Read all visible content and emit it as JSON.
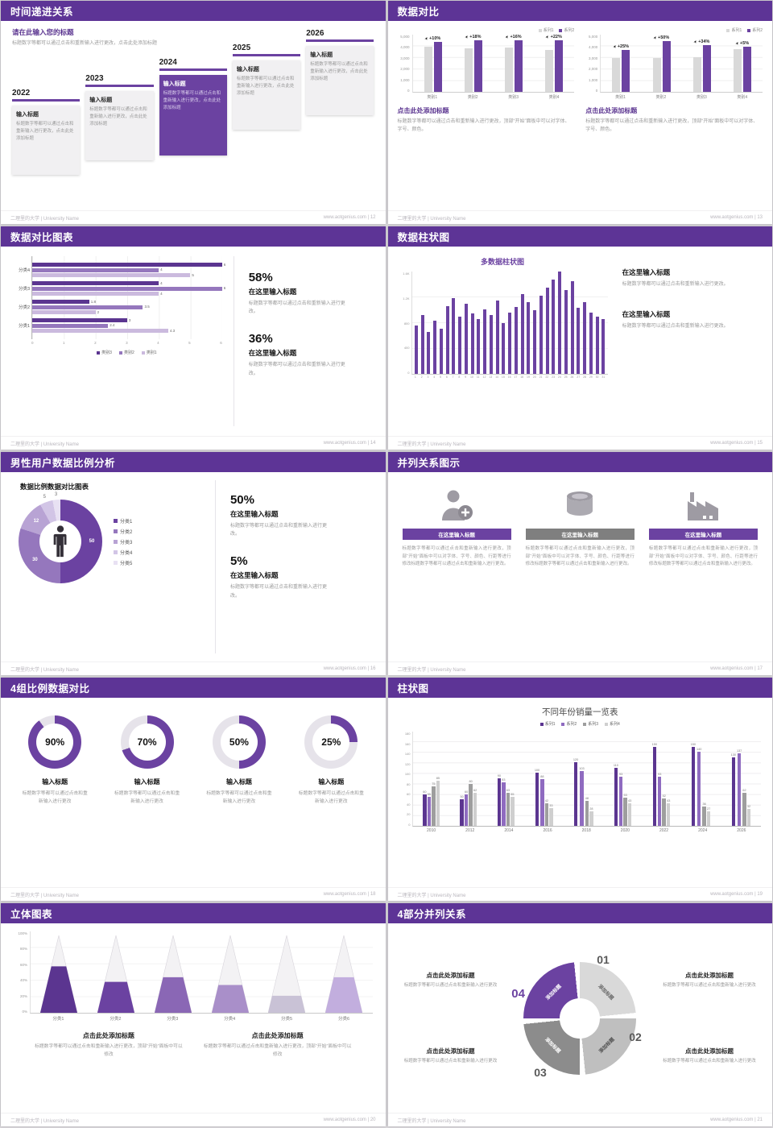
{
  "meta": {
    "brand": "二理里的大学 | University Name",
    "site": "www.aotgenius.com"
  },
  "colors": {
    "accent": "#6b42a1",
    "header": "#5d3496",
    "ring_rest": "#e6e3ea"
  },
  "s12": {
    "header": "时间递进关系",
    "footer_right": "www.aotgenius.com | 12",
    "intro_title": "请在此输入您的标题",
    "intro_body": "标题数字等都可以通过点击和重新输入进行更改，点击此处添加标题",
    "items": [
      {
        "year": "2022",
        "title": "输入标题",
        "body": "标题数字等都可以通过点击和重新输入进行更改，点击此处添加标题"
      },
      {
        "year": "2023",
        "title": "输入标题",
        "body": "标题数字等都可以通过点击和重新输入进行更改，点击此处添加标题"
      },
      {
        "year": "2024",
        "title": "输入标题",
        "body": "标题数字等都可以通过点击和重新输入进行更改，点击此处添加标题"
      },
      {
        "year": "2025",
        "title": "输入标题",
        "body": "标题数字等都可以通过点击和重新输入进行更改，点击此处添加标题"
      },
      {
        "year": "2026",
        "title": "输入标题",
        "body": "标题数字等都可以通过点击和重新输入进行更改，点击此处添加标题"
      }
    ]
  },
  "s13": {
    "header": "数据对比",
    "footer_right": "www.aotgenius.com | 13",
    "legend": [
      "系列1",
      "系列2"
    ],
    "colors": {
      "series1": "#d9d9d9",
      "series2": "#6b42a1"
    },
    "charts": [
      {
        "yticks": [
          "5,000",
          "4,000",
          "3,000",
          "2,000",
          "1,000",
          "0"
        ],
        "ymax": 5000,
        "categories": [
          "类别1",
          "类别2",
          "类别3",
          "类别4"
        ],
        "pcts": [
          "+10%",
          "+18%",
          "+16%",
          "+22%"
        ],
        "series1": [
          4000,
          4100,
          4200,
          4100
        ],
        "series2": [
          4400,
          4840,
          4870,
          5000
        ],
        "caption_title": "点击此处添加标题",
        "caption_body": "标题数字等都可以通过点击和重新输入进行更改，顶部“开始”面板中可以对字体、字号、颜色。"
      },
      {
        "yticks": [
          "5,000",
          "4,000",
          "3,000",
          "2,000",
          "1,000",
          "0"
        ],
        "ymax": 5000,
        "categories": [
          "类别1",
          "类别2",
          "类别3",
          "类别4"
        ],
        "pcts": [
          "+25%",
          "+50%",
          "+34%",
          "+5%"
        ],
        "series1": [
          3000,
          3000,
          3100,
          3800
        ],
        "series2": [
          3750,
          4500,
          4150,
          3990
        ],
        "caption_title": "点击此处添加标题",
        "caption_body": "标题数字等都可以通过点击和重新输入进行更改，顶部“开始”面板中可以对字体、字号、颜色。"
      }
    ]
  },
  "s14": {
    "header": "数据对比图表",
    "footer_right": "www.aotgenius.com | 14",
    "chart": {
      "type": "bar",
      "xmax": 6,
      "xticks": [
        "0",
        "1",
        "2",
        "3",
        "4",
        "5",
        "6"
      ],
      "series": [
        "类别3",
        "类别2",
        "类别1"
      ],
      "colors": [
        "#5b3590",
        "#9577bd",
        "#cbbade"
      ],
      "rows": [
        {
          "cat": "分类4",
          "values": [
            6,
            4,
            5
          ]
        },
        {
          "cat": "分类3",
          "values": [
            4,
            6,
            4
          ]
        },
        {
          "cat": "分类2",
          "values": [
            1.8,
            3.5,
            2
          ]
        },
        {
          "cat": "分类1",
          "values": [
            3,
            2.4,
            4.3
          ]
        }
      ]
    },
    "stats": [
      {
        "pct": "58%",
        "title": "在这里输入标题",
        "body": "标题数字等都可以通过点击和重新输入进行更改。"
      },
      {
        "pct": "36%",
        "title": "在这里输入标题",
        "body": "标题数字等都可以通过点击和重新输入进行更改。"
      }
    ]
  },
  "s15": {
    "header": "数据柱状图",
    "footer_right": "www.aotgenius.com | 15",
    "chart": {
      "type": "bar",
      "title": "多数据柱状图",
      "ymax": 1600,
      "yticks": [
        "1.6K",
        "1.2K",
        "800",
        "400",
        "0"
      ],
      "xlabels": [
        "1",
        "2",
        "3",
        "4",
        "5",
        "6",
        "7",
        "8",
        "9",
        "10",
        "11",
        "12",
        "13",
        "14",
        "15",
        "16",
        "17",
        "18",
        "19",
        "20",
        "21",
        "22",
        "23",
        "24",
        "25",
        "26",
        "27",
        "28",
        "29",
        "30",
        "31"
      ],
      "values": [
        760,
        920,
        650,
        830,
        700,
        1060,
        1180,
        900,
        1100,
        950,
        860,
        1010,
        920,
        1150,
        800,
        960,
        1040,
        1250,
        1120,
        1000,
        1220,
        1350,
        1480,
        1600,
        1310,
        1450,
        1030,
        1120,
        960,
        900,
        860
      ]
    },
    "blocks": [
      {
        "title": "在这里输入标题",
        "body": "标题数字等都可以通过点击和重新输入进行更改。"
      },
      {
        "title": "在这里输入标题",
        "body": "标题数字等都可以通过点击和重新输入进行更改。"
      }
    ]
  },
  "s16": {
    "header": "男性用户数据比例分析",
    "footer_right": "www.aotgenius.com | 16",
    "chart": {
      "type": "pie",
      "title": "数据比例数据对比图表",
      "values": [
        50,
        30,
        12,
        5,
        3
      ],
      "labels": [
        "50",
        "30",
        "12",
        "5",
        "3"
      ],
      "colors": [
        "#6b42a1",
        "#9577bd",
        "#b8a3d4",
        "#d2c5e6",
        "#e8e1f3"
      ],
      "legend": [
        "分类1",
        "分类2",
        "分类3",
        "分类4",
        "分类5"
      ]
    },
    "stats": [
      {
        "pct": "50%",
        "title": "在这里输入标题",
        "body": "标题数字等都可以通过点击和重新输入进行更改。"
      },
      {
        "pct": "5%",
        "title": "在这里输入标题",
        "body": "标题数字等都可以通过点击和重新输入进行更改。"
      }
    ]
  },
  "s17": {
    "header": "并列关系图示",
    "footer_right": "www.aotgenius.com | 17",
    "cols": [
      {
        "icon": "nurse-icon",
        "bar_color": "#6b42a1",
        "title": "在这里输入标题",
        "body": "标题数字等都可以通过点击和重新输入进行更改，顶部“开始”面板中可以对字体、字号、颜色、行距等进行修改标题数字等都可以通过点击和重新输入进行更改。"
      },
      {
        "icon": "database-icon",
        "bar_color": "#7f7f7f",
        "title": "在这里输入标题",
        "body": "标题数字等都可以通过点击和重新输入进行更改，顶部“开始”面板中可以对字体、字号、颜色、行距等进行修改标题数字等都可以通过点击和重新输入进行更改。"
      },
      {
        "icon": "factory-icon",
        "bar_color": "#6b42a1",
        "title": "在这里输入标题",
        "body": "标题数字等都可以通过点击和重新输入进行更改，顶部“开始”面板中可以对字体、字号、颜色、行距等进行修改标题数字等都可以通过点击和重新输入进行更改。"
      }
    ]
  },
  "s18": {
    "header": "4组比例数据对比",
    "footer_right": "www.aotgenius.com | 18",
    "rings": [
      {
        "value": 90,
        "label": "90%",
        "title": "输入标题",
        "body": "标题数字等都可以通过点击和重新输入进行更改"
      },
      {
        "value": 70,
        "label": "70%",
        "title": "输入标题",
        "body": "标题数字等都可以通过点击和重新输入进行更改"
      },
      {
        "value": 50,
        "label": "50%",
        "title": "输入标题",
        "body": "标题数字等都可以通过点击和重新输入进行更改"
      },
      {
        "value": 25,
        "label": "25%",
        "title": "输入标题",
        "body": "标题数字等都可以通过点击和重新输入进行更改"
      }
    ]
  },
  "s19": {
    "header": "柱状图",
    "footer_right": "www.aotgenius.com | 19",
    "chart": {
      "type": "bar",
      "title": "不同年份销量一览表",
      "ymax": 180,
      "yticks": [
        "180",
        "160",
        "140",
        "120",
        "100",
        "80",
        "60",
        "40",
        "20",
        "0"
      ],
      "years": [
        "2010",
        "2012",
        "2014",
        "2016",
        "2018",
        "2020",
        "2022",
        "2024",
        "2026"
      ],
      "series": [
        {
          "name": "系列1",
          "color": "#5b3590",
          "values": [
            60,
            50,
            90,
            100,
            120,
            110,
            150,
            150,
            130
          ]
        },
        {
          "name": "系列2",
          "color": "#8f6bc0",
          "values": [
            55,
            60,
            83,
            88,
            103,
            93,
            93,
            140,
            137
          ]
        },
        {
          "name": "系列3",
          "color": "#9e9e9e",
          "values": [
            75,
            80,
            63,
            42,
            48,
            53,
            52,
            36,
            62
          ]
        },
        {
          "name": "系列4",
          "color": "#cfcfcf",
          "values": [
            85,
            62,
            55,
            33,
            28,
            43,
            43,
            27,
            32
          ]
        }
      ]
    }
  },
  "s20": {
    "header": "立体图表",
    "footer_right": "www.aotgenius.com | 20",
    "chart": {
      "type": "bar",
      "yticks": [
        "100%",
        "80%",
        "60%",
        "40%",
        "20%",
        "0%"
      ],
      "cones": [
        {
          "label": "分类1",
          "fill": 60,
          "color": "#5b3590"
        },
        {
          "label": "分类2",
          "fill": 40,
          "color": "#6b42a1"
        },
        {
          "label": "分类3",
          "fill": 46,
          "color": "#8a67b5"
        },
        {
          "label": "分类4",
          "fill": 36,
          "color": "#a98fc9"
        },
        {
          "label": "分类5",
          "fill": 22,
          "color": "#c9c2d6"
        },
        {
          "label": "分类6",
          "fill": 46,
          "color": "#c2aede"
        }
      ]
    },
    "captions": [
      {
        "title": "点击此处添加标题",
        "body": "标题数字等都可以通过点击和重新输入进行更改，顶部“开始”面板中可以修改"
      },
      {
        "title": "点击此处添加标题",
        "body": "标题数字等都可以通过点击和重新输入进行更改，顶部“开始”面板中可以修改"
      }
    ]
  },
  "s21": {
    "header": "4部分并列关系",
    "footer_right": "www.aotgenius.com | 21",
    "segments": [
      {
        "num": "01",
        "label": "添加标题",
        "color": "#d9d9d9"
      },
      {
        "num": "02",
        "label": "添加标题",
        "color": "#bfbfbf"
      },
      {
        "num": "03",
        "label": "添加标题",
        "color": "#8c8c8c"
      },
      {
        "num": "04",
        "label": "添加标题",
        "color": "#6b42a1"
      }
    ],
    "corners": [
      {
        "title": "点击此处添加标题",
        "body": "标题数字等都可以通过点击和重新输入进行更改"
      },
      {
        "title": "点击此处添加标题",
        "body": "标题数字等都可以通过点击和重新输入进行更改"
      },
      {
        "title": "点击此处添加标题",
        "body": "标题数字等都可以通过点击和重新输入进行更改"
      },
      {
        "title": "点击此处添加标题",
        "body": "标题数字等都可以通过点击和重新输入进行更改"
      }
    ]
  }
}
